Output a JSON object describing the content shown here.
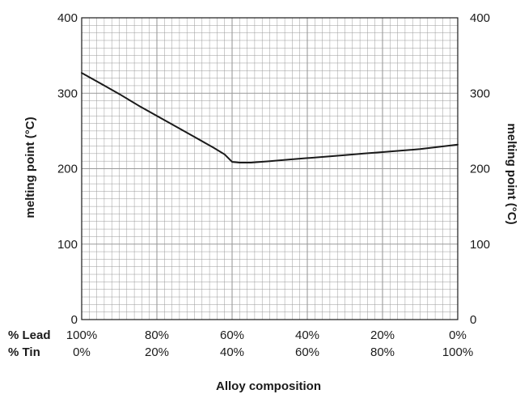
{
  "chart_data": {
    "type": "line",
    "title": "",
    "xlabel": "Alloy composition",
    "ylabel_left": "melting point (°C)",
    "ylabel_right": "melting point (°C)",
    "ylim": [
      0,
      400
    ],
    "yticks": [
      "0",
      "100",
      "200",
      "300",
      "400"
    ],
    "x_rows": [
      {
        "label": "% Lead",
        "ticks": [
          "100%",
          "80%",
          "60%",
          "40%",
          "20%",
          "0%"
        ]
      },
      {
        "label": "% Tin",
        "ticks": [
          "0%",
          "20%",
          "40%",
          "60%",
          "80%",
          "100%"
        ]
      }
    ],
    "xlim": [
      0,
      100
    ],
    "x_unit": "% Tin",
    "grid": true,
    "series": [
      {
        "x": [
          0,
          5,
          10,
          15,
          20,
          25,
          30,
          35,
          38,
          40,
          42,
          45,
          50,
          55,
          60,
          65,
          70,
          75,
          80,
          85,
          90,
          95,
          100
        ],
        "y": [
          327,
          313,
          299,
          284,
          270,
          256,
          242,
          228,
          219,
          209,
          208,
          208,
          210,
          212,
          214,
          216,
          218,
          220,
          222,
          224,
          226,
          229,
          232
        ]
      }
    ],
    "line_color": "#1a1a1a",
    "grid_color": "#9a9a9a"
  }
}
